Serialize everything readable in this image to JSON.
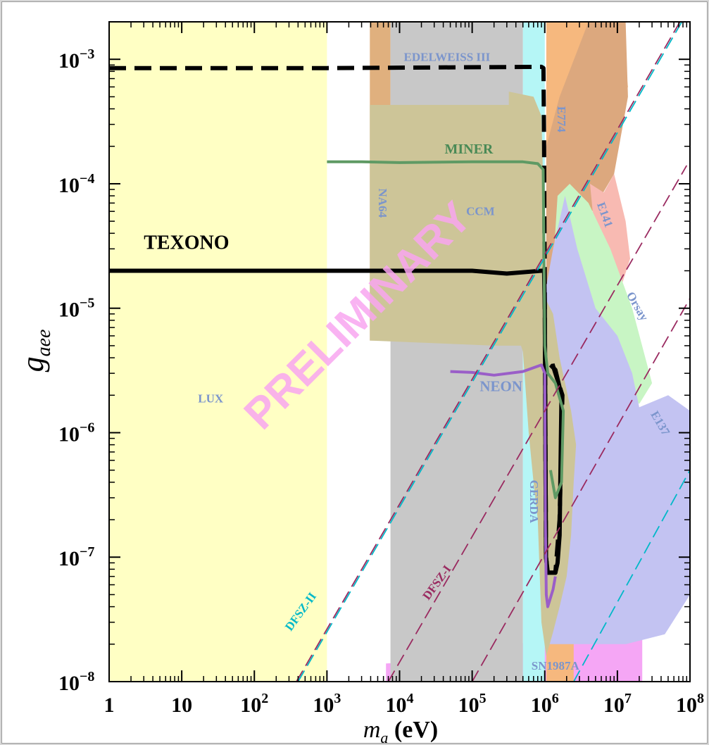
{
  "chart_data": {
    "type": "area",
    "title": "",
    "xlabel": "m_a (eV)",
    "xlabel_parts": {
      "symbol": "m",
      "sub": "a",
      "unit": " (eV)"
    },
    "ylabel": "g_aee",
    "ylabel_parts": {
      "symbol": "g",
      "sub": "aee"
    },
    "xscale": "log",
    "yscale": "log",
    "xlim": [
      1,
      100000000
    ],
    "ylim": [
      1e-08,
      0.002
    ],
    "x_ticks": [
      {
        "value": 1,
        "base": "1",
        "exp": ""
      },
      {
        "value": 10,
        "base": "10",
        "exp": ""
      },
      {
        "value": 100,
        "base": "10",
        "exp": "2"
      },
      {
        "value": 1000,
        "base": "10",
        "exp": "3"
      },
      {
        "value": 10000,
        "base": "10",
        "exp": "4"
      },
      {
        "value": 100000,
        "base": "10",
        "exp": "5"
      },
      {
        "value": 1000000,
        "base": "10",
        "exp": "6"
      },
      {
        "value": 10000000,
        "base": "10",
        "exp": "7"
      },
      {
        "value": 100000000,
        "base": "10",
        "exp": "8"
      }
    ],
    "y_ticks": [
      {
        "value": 1e-08,
        "base": "10",
        "exp": "−8"
      },
      {
        "value": 1e-07,
        "base": "10",
        "exp": "−7"
      },
      {
        "value": 1e-06,
        "base": "10",
        "exp": "−6"
      },
      {
        "value": 1e-05,
        "base": "10",
        "exp": "−5"
      },
      {
        "value": 0.0001,
        "base": "10",
        "exp": "−4"
      },
      {
        "value": 0.001,
        "base": "10",
        "exp": "−3"
      }
    ],
    "watermark": "PRELIMINARY",
    "watermark_color": "#f9a6f0",
    "regions": [
      {
        "name": "LUX",
        "color": "#ffffc4",
        "points": [
          [
            1,
            1e-08
          ],
          [
            1000,
            1e-08
          ],
          [
            1000,
            0.002
          ],
          [
            1,
            0.002
          ]
        ]
      },
      {
        "name": "SN1987A",
        "color": "#f5a6f5",
        "points": [
          [
            6500,
            1e-08
          ],
          [
            22000000.0,
            1e-08
          ],
          [
            22000000.0,
            2.3e-08
          ],
          [
            3000000.0,
            2.5e-08
          ],
          [
            600000.0,
            2.1e-08
          ],
          [
            100000.0,
            1.55e-08
          ],
          [
            6500,
            1.4e-08
          ]
        ]
      },
      {
        "name": "NA64",
        "color": "#e0b07e",
        "points": [
          [
            3900,
            5.5e-06
          ],
          [
            7500,
            5.5e-06
          ],
          [
            7500,
            0.002
          ],
          [
            3900,
            0.002
          ]
        ]
      },
      {
        "name": "EDELWEISS III",
        "color": "#c8c8c8",
        "points": [
          [
            7500,
            1e-08
          ],
          [
            500000,
            1e-08
          ],
          [
            500000,
            0.002
          ],
          [
            7500,
            0.002
          ]
        ]
      },
      {
        "name": "GERDA",
        "color": "#b5f6f6",
        "points": [
          [
            500000,
            1e-08
          ],
          [
            1000000.0,
            1e-08
          ],
          [
            1000000.0,
            0.002
          ],
          [
            500000,
            0.002
          ]
        ]
      },
      {
        "name": "E774",
        "color": "#f6b87e",
        "points": [
          [
            1050000.0,
            1e-08
          ],
          [
            2500000.0,
            1e-08
          ],
          [
            2500000.0,
            0.0001
          ],
          [
            3500000.0,
            0.00012
          ],
          [
            5000000.0,
            0.00017
          ],
          [
            9000000.0,
            0.0003
          ],
          [
            14000000.0,
            0.0006
          ],
          [
            11000000.0,
            0.002
          ],
          [
            1050000.0,
            0.002
          ]
        ]
      },
      {
        "name": "E774-dark",
        "color": "#dca87e",
        "points": [
          [
            1050000.0,
            8e-06
          ],
          [
            3000000.0,
            1.2e-05
          ],
          [
            4500000.0,
            6e-05
          ],
          [
            9000000.0,
            0.00012
          ],
          [
            14000000.0,
            0.0005
          ],
          [
            13000000.0,
            0.002
          ],
          [
            4000000.0,
            0.002
          ],
          [
            1600000.0,
            0.0005
          ],
          [
            1050000.0,
            0.0002
          ]
        ]
      },
      {
        "name": "E141",
        "color": "#f8bab2",
        "points": [
          [
            4200000.0,
            0.0001
          ],
          [
            6500000.0,
            8.5e-05
          ],
          [
            9000000.0,
            0.00012
          ],
          [
            13000000.0,
            5e-05
          ],
          [
            15000000.0,
            2.5e-05
          ],
          [
            10000000.0,
            1.2e-05
          ],
          [
            5000000.0,
            3.5e-05
          ]
        ]
      },
      {
        "name": "Orsay",
        "color": "#c8f5c4",
        "points": [
          [
            1050000.0,
            3e-06
          ],
          [
            1500000.0,
            8e-05
          ],
          [
            2200000.0,
            0.0001
          ],
          [
            4000000.0,
            7e-05
          ],
          [
            8000000.0,
            3e-05
          ],
          [
            16000000.0,
            1e-05
          ],
          [
            30000000.0,
            2.5e-06
          ],
          [
            20000000.0,
            1.7e-06
          ],
          [
            6000000.0,
            4e-06
          ],
          [
            2000000.0,
            8e-06
          ],
          [
            1100000.0,
            6e-06
          ]
        ]
      },
      {
        "name": "E137",
        "color": "#c3c3f2",
        "points": [
          [
            1050000.0,
            2e-08
          ],
          [
            13000000.0,
            2e-08
          ],
          [
            45000000.0,
            2.4e-08
          ],
          [
            100000000.0,
            5e-08
          ],
          [
            100000000.0,
            1.5e-06
          ],
          [
            50000000.0,
            2e-06
          ],
          [
            20000000.0,
            1.6e-06
          ],
          [
            16000000.0,
            3e-06
          ],
          [
            10000000.0,
            6e-06
          ],
          [
            5000000.0,
            1e-05
          ],
          [
            2800000.0,
            3e-05
          ],
          [
            1900000.0,
            8e-05
          ],
          [
            1300000.0,
            3e-05
          ],
          [
            1050000.0,
            1.5e-05
          ]
        ]
      },
      {
        "name": "CCM",
        "color": "#cdc598",
        "points": [
          [
            3900,
            0.00043
          ],
          [
            320000.0,
            0.00043
          ],
          [
            320000.0,
            0.00055
          ],
          [
            700000.0,
            0.0005
          ],
          [
            900000.0,
            0.00035
          ],
          [
            950000.0,
            0.0001
          ],
          [
            950000.0,
            1.3e-05
          ],
          [
            1300000.0,
            9e-06
          ],
          [
            1600000.0,
            4e-06
          ],
          [
            2300000.0,
            1.5e-06
          ],
          [
            2700000.0,
            8e-07
          ],
          [
            2500000.0,
            4e-07
          ],
          [
            2300000.0,
            1.5e-07
          ],
          [
            2000000.0,
            7e-08
          ],
          [
            1600000.0,
            4e-08
          ],
          [
            1300000.0,
            2.5e-08
          ],
          [
            1050000.0,
            1.6e-08
          ],
          [
            900000.0,
            3e-08
          ],
          [
            800000.0,
            2e-07
          ],
          [
            700000.0,
            4e-07
          ],
          [
            600000.0,
            1e-06
          ],
          [
            500000.0,
            4.5e-06
          ],
          [
            470000.0,
            5e-06
          ],
          [
            200000.0,
            5e-06
          ],
          [
            3900,
            5.5e-06
          ]
        ]
      }
    ],
    "series": [
      {
        "name": "TEXONO",
        "color": "#000000",
        "style": "solid",
        "points": [
          [
            1,
            2e-05
          ],
          [
            1000,
            2e-05
          ],
          [
            100000.0,
            2e-05
          ],
          [
            300000.0,
            1.9e-05
          ],
          [
            900000.0,
            2e-05
          ],
          [
            980000.0,
            2e-05
          ],
          [
            1000000.0,
            1e-05
          ],
          [
            1020000.0,
            1e-06
          ],
          [
            1040000.0,
            1e-07
          ],
          [
            1100000.0,
            7.5e-08
          ],
          [
            1400000.0,
            7.5e-08
          ],
          [
            1500000.0,
            9e-08
          ],
          [
            1600000.0,
            1.5e-07
          ],
          [
            1700000.0,
            2e-06
          ],
          [
            1400000.0,
            3.2e-06
          ],
          [
            1200000.0,
            3.5e-06
          ]
        ]
      },
      {
        "name": "TEXONO-dashed",
        "color": "#000000",
        "style": "dashed",
        "points": [
          [
            1,
            0.00085
          ],
          [
            1000,
            0.00085
          ],
          [
            900000.0,
            0.00087
          ],
          [
            960000.0,
            0.00085
          ],
          [
            980000.0,
            0.0002
          ],
          [
            1000000.0,
            1e-05
          ],
          [
            1020000.0,
            1e-06
          ],
          [
            1040000.0,
            1e-07
          ],
          [
            1100000.0,
            7.5e-08
          ],
          [
            1400000.0,
            7.5e-08
          ],
          [
            1600000.0,
            2e-07
          ],
          [
            1750000.0,
            2e-06
          ],
          [
            1400000.0,
            3e-06
          ],
          [
            1250000.0,
            3.7e-06
          ]
        ]
      },
      {
        "name": "MINER",
        "color": "#5f9a64",
        "style": "solid",
        "points": [
          [
            1000,
            0.00015
          ],
          [
            3000,
            0.00015
          ],
          [
            10000.0,
            0.000148
          ],
          [
            100000.0,
            0.00015
          ],
          [
            500000.0,
            0.00015
          ],
          [
            800000.0,
            0.000145
          ],
          [
            950000.0,
            0.00013
          ],
          [
            980000.0,
            2e-05
          ],
          [
            1000000.0,
            5e-06
          ],
          [
            1100000.0,
            3e-06
          ],
          [
            1400000.0,
            2.5e-06
          ],
          [
            1800000.0,
            1.5e-06
          ],
          [
            1700000.0,
            4e-07
          ],
          [
            1400000.0,
            3e-07
          ],
          [
            1200000.0,
            5e-07
          ]
        ]
      },
      {
        "name": "NEON",
        "color": "#9a5ec8",
        "style": "solid",
        "points": [
          [
            50000.0,
            3.1e-06
          ],
          [
            100000.0,
            3.05e-06
          ],
          [
            200000.0,
            2.9e-06
          ],
          [
            500000.0,
            3.1e-06
          ],
          [
            900000.0,
            3.5e-06
          ],
          [
            1000000.0,
            3e-06
          ],
          [
            1020000.0,
            2e-07
          ],
          [
            1050000.0,
            5e-08
          ],
          [
            1100000.0,
            4e-08
          ],
          [
            1300000.0,
            5.5e-08
          ],
          [
            1400000.0,
            7e-08
          ]
        ]
      },
      {
        "name": "DFSZ-II",
        "color": "#00b8c8",
        "style": "longdash",
        "points": [
          [
            400,
            1e-08
          ],
          [
            85000000.0,
            0.0022
          ]
        ]
      },
      {
        "name": "DFSZ-II-purple",
        "color": "#9a2a60",
        "style": "longdash",
        "points": [
          [
            380,
            1e-08
          ],
          [
            80000000.0,
            0.0022
          ]
        ]
      },
      {
        "name": "DFSZ-I",
        "color": "#9a2a60",
        "style": "longdash",
        "points": [
          [
            7000,
            1e-08
          ],
          [
            90000000.0,
            0.00014
          ]
        ]
      },
      {
        "name": "DFSZ-cyan-right",
        "color": "#00b8c8",
        "style": "longdash",
        "points": [
          [
            2500000.0,
            1e-08
          ],
          [
            100000000.0,
            5e-07
          ]
        ]
      },
      {
        "name": "DFSZ-purple-right",
        "color": "#9a2a60",
        "style": "longdash",
        "points": [
          [
            100000.0,
            1e-08
          ],
          [
            100000000.0,
            1.2e-05
          ]
        ]
      }
    ],
    "labels": [
      {
        "text": "EDELWEISS III",
        "x": 45000,
        "y": 0.00097,
        "color": "#7b95cc",
        "size": 17,
        "rotate": 0
      },
      {
        "text": "E774",
        "x": 1500000.0,
        "y": 0.00033,
        "color": "#7b95cc",
        "size": 17,
        "rotate": 90
      },
      {
        "text": "MINER",
        "x": 90000,
        "y": 0.000175,
        "color": "#4a8a56",
        "size": 20,
        "rotate": 0
      },
      {
        "text": "NA64",
        "x": 5200,
        "y": 7e-05,
        "color": "#7b95cc",
        "size": 17,
        "rotate": 90
      },
      {
        "text": "CCM",
        "x": 130000.0,
        "y": 5.6e-05,
        "color": "#7b95cc",
        "size": 17,
        "rotate": 0
      },
      {
        "text": "E141",
        "x": 6000000.0,
        "y": 5.5e-05,
        "color": "#7b95cc",
        "size": 17,
        "rotate": 70
      },
      {
        "text": "TEXONO",
        "x": 3,
        "y": 3e-05,
        "color": "#000000",
        "size": 28,
        "rotate": 0
      },
      {
        "text": "Orsay",
        "x": 17000000.0,
        "y": 1e-05,
        "color": "#7b95cc",
        "size": 17,
        "rotate": 60
      },
      {
        "text": "NEON",
        "x": 250000.0,
        "y": 2.15e-06,
        "color": "#7b95cc",
        "size": 21,
        "rotate": 0
      },
      {
        "text": "LUX",
        "x": 25,
        "y": 1.75e-06,
        "color": "#7b95cc",
        "size": 17,
        "rotate": 0
      },
      {
        "text": "E137",
        "x": 35000000.0,
        "y": 1.15e-06,
        "color": "#7b95cc",
        "size": 17,
        "rotate": 60
      },
      {
        "text": "GERDA",
        "x": 630000.0,
        "y": 2.8e-07,
        "color": "#7b95cc",
        "size": 17,
        "rotate": 90
      },
      {
        "text": "DFSZ-I",
        "x": 36000,
        "y": 6e-08,
        "color": "#9a2a60",
        "size": 17,
        "rotate": -54
      },
      {
        "text": "DFSZ-II",
        "x": 480,
        "y": 3.5e-08,
        "color": "#00b8c8",
        "size": 17,
        "rotate": -54
      },
      {
        "text": "SN1987A",
        "x": 1400000.0,
        "y": 1.25e-08,
        "color": "#7b95cc",
        "size": 17,
        "rotate": 0
      }
    ]
  }
}
